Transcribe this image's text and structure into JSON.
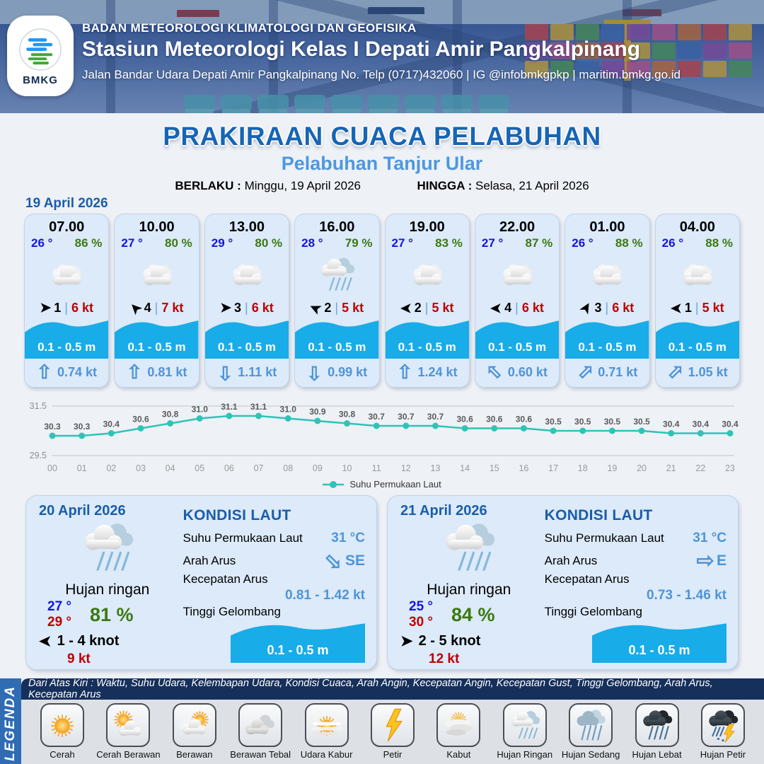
{
  "header": {
    "agency": "BADAN METEOROLOGI KLIMATOLOGI DAN GEOFISIKA",
    "station": "Stasiun Meteorologi Kelas I Depati Amir Pangkalpinang",
    "address": "Jalan Bandar Udara Depati Amir Pangkalpinang No. Telp (0717)432060 | IG @infobmkgpkp | maritim.bmkg.go.id",
    "logo_label": "BMKG"
  },
  "title": {
    "main": "PRAKIRAAN CUACA PELABUHAN",
    "subtitle": "Pelabuhan Tanjur Ular",
    "valid_from_label": "BERLAKU :",
    "valid_from": "Minggu, 19 April 2026",
    "valid_to_label": "HINGGA :",
    "valid_to": "Selasa, 21 April 2026"
  },
  "forecast_date": "19 April 2026",
  "ui": {
    "wind_sep": "|"
  },
  "hourly": [
    {
      "time": "07.00",
      "temp": "26 °",
      "humidity": "86 %",
      "icon": "cloud",
      "wind_rot": 0,
      "wind_bft": "1",
      "wind_speed": "6 kt",
      "wave": "0.1 - 0.5 m",
      "current_rot": 0,
      "current_speed": "0.74 kt"
    },
    {
      "time": "10.00",
      "temp": "27 °",
      "humidity": "80 %",
      "icon": "cloud",
      "wind_rot": -135,
      "wind_bft": "4",
      "wind_speed": "7 kt",
      "wave": "0.1 - 0.5 m",
      "current_rot": 0,
      "current_speed": "0.81 kt"
    },
    {
      "time": "13.00",
      "temp": "29 °",
      "humidity": "80 %",
      "icon": "cloud",
      "wind_rot": 0,
      "wind_bft": "3",
      "wind_speed": "6 kt",
      "wave": "0.1 - 0.5 m",
      "current_rot": 180,
      "current_speed": "1.11 kt"
    },
    {
      "time": "16.00",
      "temp": "28 °",
      "humidity": "79 %",
      "icon": "rain-light",
      "wind_rot": -155,
      "wind_bft": "2",
      "wind_speed": "5 kt",
      "wave": "0.1 - 0.5 m",
      "current_rot": 180,
      "current_speed": "0.99 kt"
    },
    {
      "time": "19.00",
      "temp": "27 °",
      "humidity": "83 %",
      "icon": "cloud",
      "wind_rot": 180,
      "wind_bft": "2",
      "wind_speed": "5 kt",
      "wave": "0.1 - 0.5 m",
      "current_rot": 0,
      "current_speed": "1.24 kt"
    },
    {
      "time": "22.00",
      "temp": "27 °",
      "humidity": "87 %",
      "icon": "cloud",
      "wind_rot": 180,
      "wind_bft": "4",
      "wind_speed": "6 kt",
      "wave": "0.1 - 0.5 m",
      "current_rot": -45,
      "current_speed": "0.60 kt"
    },
    {
      "time": "01.00",
      "temp": "26 °",
      "humidity": "88 %",
      "icon": "cloud",
      "wind_rot": -60,
      "wind_bft": "3",
      "wind_speed": "6 kt",
      "wave": "0.1 - 0.5 m",
      "current_rot": 45,
      "current_speed": "0.71 kt"
    },
    {
      "time": "04.00",
      "temp": "26 °",
      "humidity": "88 %",
      "icon": "cloud",
      "wind_rot": 180,
      "wind_bft": "1",
      "wind_speed": "5 kt",
      "wave": "0.1 - 0.5 m",
      "current_rot": 45,
      "current_speed": "1.05 kt"
    }
  ],
  "chart_data": {
    "type": "line",
    "x": [
      "00",
      "01",
      "02",
      "03",
      "04",
      "05",
      "06",
      "07",
      "08",
      "09",
      "10",
      "11",
      "12",
      "13",
      "14",
      "15",
      "16",
      "17",
      "18",
      "19",
      "20",
      "21",
      "22",
      "23"
    ],
    "series": [
      {
        "name": "Suhu Permukaan Laut",
        "values": [
          30.3,
          30.3,
          30.4,
          30.6,
          30.8,
          31.0,
          31.1,
          31.1,
          31.0,
          30.9,
          30.8,
          30.7,
          30.7,
          30.7,
          30.6,
          30.6,
          30.6,
          30.5,
          30.5,
          30.5,
          30.5,
          30.4,
          30.4,
          30.4
        ]
      }
    ],
    "ylim": [
      29.5,
      31.5
    ],
    "yticks": [
      31.5,
      29.5
    ],
    "line_color": "#2ec4b6",
    "grid": true,
    "legend_position": "bottom"
  },
  "sea_labels": {
    "title": "KONDISI LAUT",
    "sst": "Suhu Permukaan Laut",
    "current_dir": "Arah Arus",
    "current_speed": "Kecepatan Arus",
    "wave": "Tinggi Gelombang"
  },
  "daily": [
    {
      "date": "20 April 2026",
      "icon": "rain-light",
      "condition": "Hujan ringan",
      "temp_min": "27 °",
      "temp_max": "29 °",
      "humidity": "81 %",
      "wind_rot": 180,
      "wind_range": "1  - 4 knot",
      "gust": "9 kt",
      "sea": {
        "sst": "31 °C",
        "dir": "SE",
        "dir_rot": 135,
        "speed": "0.81  - 1.42 kt",
        "wave": "0.1 - 0.5 m"
      }
    },
    {
      "date": "21 April 2026",
      "icon": "rain-light",
      "condition": "Hujan ringan",
      "temp_min": "25 °",
      "temp_max": "30 °",
      "humidity": "84 %",
      "wind_rot": 0,
      "wind_range": "2  - 5 knot",
      "gust": "12 kt",
      "sea": {
        "sst": "31 °C",
        "dir": "E",
        "dir_rot": 90,
        "speed": "0.73  - 1.46 kt",
        "wave": "0.1 - 0.5 m"
      }
    }
  ],
  "legend": {
    "label": "LEGENDA",
    "note": "Dari Atas Kiri : Waktu, Suhu Udara, Kelembapan Udara, Kondisi Cuaca, Arah Angin, Kecepatan Angin, Kecepatan Gust, Tinggi Gelombang, Arah Arus, Kecepatan Arus",
    "items": [
      {
        "label": "Cerah",
        "icon": "sun"
      },
      {
        "label": "Cerah Berawan",
        "icon": "sun-cloud"
      },
      {
        "label": "Berawan",
        "icon": "cloud-sun"
      },
      {
        "label": "Berawan Tebal",
        "icon": "clouds"
      },
      {
        "label": "Udara Kabur",
        "icon": "haze-sun"
      },
      {
        "label": "Petir",
        "icon": "bolt"
      },
      {
        "label": "Kabut",
        "icon": "fog"
      },
      {
        "label": "Hujan Ringan",
        "icon": "rain-light"
      },
      {
        "label": "Hujan Sedang",
        "icon": "rain-med"
      },
      {
        "label": "Hujan Lebat",
        "icon": "rain-heavy"
      },
      {
        "label": "Hujan Petir",
        "icon": "rain-bolt"
      }
    ]
  }
}
